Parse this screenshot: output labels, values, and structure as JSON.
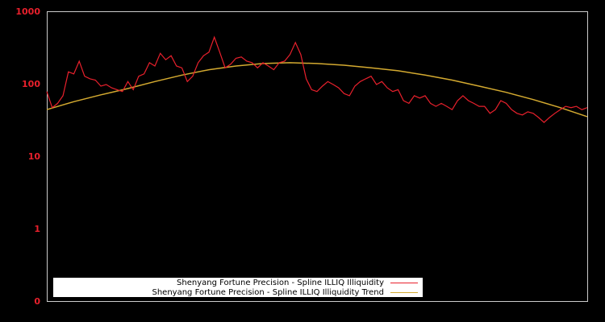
{
  "chart_data": {
    "type": "line",
    "title": "",
    "xlabel": "",
    "ylabel": "",
    "yscale": "log",
    "ylim": [
      0.1,
      1000
    ],
    "y_tick_labels": [
      "1000",
      "100",
      "10",
      "1",
      "0"
    ],
    "grid": false,
    "legend_position": "bottom-left inside",
    "background": "#000000",
    "axis_color": "#cccccc",
    "tick_label_color": "#e8202c",
    "series": [
      {
        "name": "Shenyang Fortune Precision - Spline ILLIQ Illiquidity",
        "color": "#e8202c",
        "x_frac": [
          0.0,
          0.01,
          0.02,
          0.03,
          0.04,
          0.05,
          0.06,
          0.07,
          0.08,
          0.09,
          0.1,
          0.11,
          0.12,
          0.13,
          0.14,
          0.15,
          0.16,
          0.17,
          0.18,
          0.19,
          0.2,
          0.21,
          0.22,
          0.23,
          0.24,
          0.25,
          0.26,
          0.27,
          0.28,
          0.29,
          0.3,
          0.31,
          0.32,
          0.33,
          0.34,
          0.35,
          0.36,
          0.37,
          0.38,
          0.39,
          0.4,
          0.41,
          0.42,
          0.43,
          0.44,
          0.45,
          0.46,
          0.47,
          0.48,
          0.49,
          0.5,
          0.51,
          0.52,
          0.53,
          0.54,
          0.55,
          0.56,
          0.57,
          0.58,
          0.59,
          0.6,
          0.61,
          0.62,
          0.63,
          0.64,
          0.65,
          0.66,
          0.67,
          0.68,
          0.69,
          0.7,
          0.71,
          0.72,
          0.73,
          0.74,
          0.75,
          0.76,
          0.77,
          0.78,
          0.79,
          0.8,
          0.81,
          0.82,
          0.83,
          0.84,
          0.85,
          0.86,
          0.87,
          0.88,
          0.89,
          0.9,
          0.91,
          0.92,
          0.93,
          0.94,
          0.95,
          0.96,
          0.97,
          0.98,
          0.99,
          1.0
        ],
        "values": [
          80,
          48,
          55,
          70,
          150,
          140,
          210,
          130,
          120,
          115,
          95,
          100,
          90,
          85,
          80,
          110,
          85,
          130,
          140,
          200,
          180,
          270,
          220,
          250,
          180,
          170,
          110,
          130,
          200,
          250,
          280,
          450,
          280,
          170,
          190,
          230,
          240,
          210,
          200,
          170,
          200,
          180,
          160,
          200,
          210,
          260,
          380,
          260,
          120,
          85,
          80,
          95,
          110,
          100,
          90,
          75,
          70,
          95,
          110,
          120,
          130,
          100,
          110,
          90,
          80,
          85,
          60,
          55,
          70,
          65,
          70,
          55,
          50,
          55,
          50,
          45,
          60,
          70,
          60,
          55,
          50,
          50,
          40,
          45,
          60,
          55,
          45,
          40,
          38,
          42,
          40,
          35,
          30,
          35,
          40,
          45,
          50,
          48,
          50,
          45,
          48
        ]
      },
      {
        "name": "Shenyang Fortune Precision - Spline ILLIQ Illiquidity Trend",
        "color": "#d4aa30",
        "x_frac": [
          0.0,
          0.05,
          0.1,
          0.15,
          0.2,
          0.25,
          0.3,
          0.35,
          0.4,
          0.45,
          0.5,
          0.55,
          0.6,
          0.65,
          0.7,
          0.75,
          0.8,
          0.85,
          0.9,
          0.95,
          1.0
        ],
        "values": [
          45,
          58,
          72,
          88,
          110,
          135,
          160,
          180,
          195,
          200,
          195,
          185,
          170,
          155,
          135,
          115,
          95,
          78,
          62,
          48,
          36
        ]
      }
    ]
  },
  "legend": {
    "items": [
      {
        "label": "Shenyang Fortune Precision - Spline ILLIQ Illiquidity",
        "color": "#e8202c"
      },
      {
        "label": "Shenyang Fortune Precision - Spline ILLIQ Illiquidity Trend",
        "color": "#d4aa30"
      }
    ]
  },
  "axis": {
    "y_labels": [
      "1000",
      "100",
      "10",
      "1",
      "0"
    ]
  }
}
